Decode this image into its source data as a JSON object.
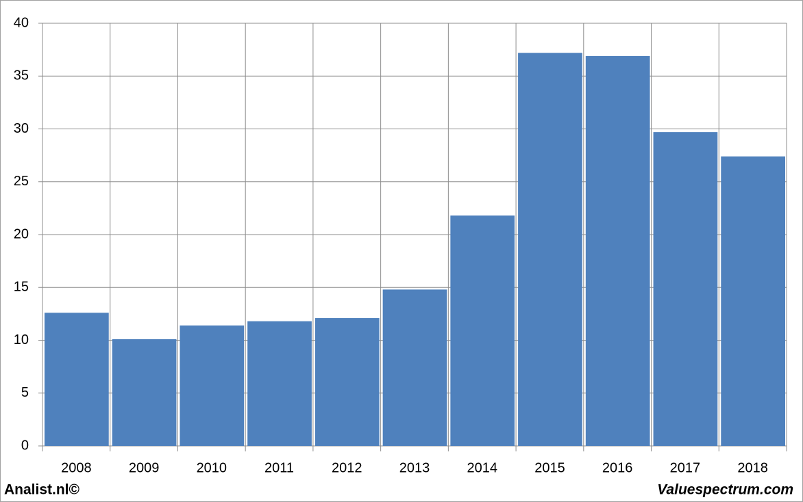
{
  "chart_data": {
    "type": "bar",
    "categories": [
      "2008",
      "2009",
      "2010",
      "2011",
      "2012",
      "2013",
      "2014",
      "2015",
      "2016",
      "2017",
      "2018"
    ],
    "values": [
      12.6,
      10.1,
      11.4,
      11.8,
      12.1,
      14.8,
      21.8,
      37.2,
      36.9,
      29.7,
      27.4
    ],
    "color": "#4f81bd",
    "ylim": [
      0,
      40
    ],
    "yticks": [
      0,
      5,
      10,
      15,
      20,
      25,
      30,
      35,
      40
    ],
    "grid": true,
    "footer_left": "Analist.nl©",
    "footer_right": "Valuespectrum.com"
  }
}
